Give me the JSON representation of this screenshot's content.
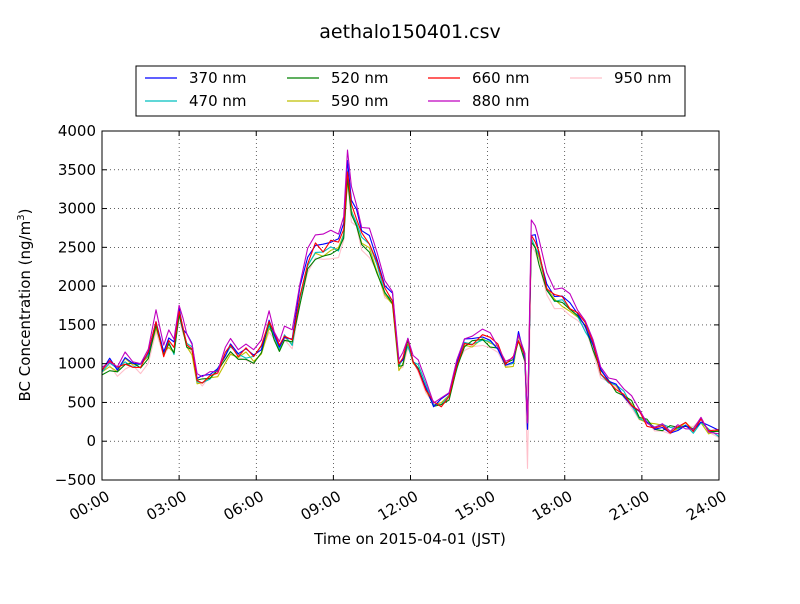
{
  "chart_data": {
    "type": "line",
    "title": "aethalo150401.csv",
    "xlabel": "Time on 2015-04-01 (JST)",
    "ylabel": "BC Concentration (ng/m",
    "ylabel_sup": "3",
    "ylabel_tail": ")",
    "xlim": [
      0,
      24
    ],
    "ylim": [
      -500,
      4000
    ],
    "xticks": [
      0,
      3,
      6,
      9,
      12,
      15,
      18,
      21,
      24
    ],
    "xtick_labels": [
      "00:00",
      "03:00",
      "06:00",
      "09:00",
      "12:00",
      "15:00",
      "18:00",
      "21:00",
      "24:00"
    ],
    "yticks": [
      -500,
      0,
      500,
      1000,
      1500,
      2000,
      2500,
      3000,
      3500,
      4000
    ],
    "ytick_labels": [
      "−500",
      "0",
      "500",
      "1000",
      "1500",
      "2000",
      "2500",
      "3000",
      "3500",
      "4000"
    ],
    "grid": true,
    "legend_position": "top-center",
    "base_profile": {
      "x": [
        0,
        0.3,
        0.6,
        0.9,
        1.2,
        1.5,
        1.8,
        2.1,
        2.4,
        2.6,
        2.8,
        3.0,
        3.15,
        3.3,
        3.5,
        3.7,
        3.9,
        4.2,
        4.5,
        4.8,
        5.0,
        5.3,
        5.6,
        5.9,
        6.2,
        6.5,
        6.7,
        6.9,
        7.1,
        7.4,
        7.7,
        8.0,
        8.3,
        8.6,
        8.9,
        9.2,
        9.4,
        9.55,
        9.7,
        9.9,
        10.1,
        10.4,
        10.7,
        11.0,
        11.3,
        11.55,
        11.7,
        11.9,
        12.1,
        12.3,
        12.6,
        12.9,
        13.2,
        13.5,
        13.8,
        14.1,
        14.4,
        14.8,
        15.1,
        15.4,
        15.7,
        16.0,
        16.2,
        16.45,
        16.55,
        16.7,
        16.85,
        17.0,
        17.3,
        17.6,
        17.9,
        18.2,
        18.5,
        18.8,
        19.1,
        19.4,
        19.7,
        20.0,
        20.3,
        20.6,
        20.9,
        21.2,
        21.5,
        21.8,
        22.1,
        22.4,
        22.7,
        23.0,
        23.3,
        23.6,
        24.0
      ],
      "y": [
        950,
        1000,
        950,
        1050,
        1000,
        980,
        1100,
        1550,
        1150,
        1300,
        1200,
        1650,
        1450,
        1300,
        1200,
        800,
        780,
        850,
        900,
        1100,
        1200,
        1100,
        1150,
        1100,
        1200,
        1550,
        1350,
        1250,
        1350,
        1300,
        1900,
        2300,
        2500,
        2500,
        2550,
        2550,
        2700,
        3500,
        3050,
        2900,
        2650,
        2550,
        2300,
        2000,
        1850,
        950,
        1050,
        1300,
        1050,
        950,
        700,
        480,
        500,
        600,
        1000,
        1250,
        1300,
        1350,
        1300,
        1200,
        1000,
        1050,
        1350,
        1100,
        200,
        2650,
        2600,
        2400,
        2000,
        1850,
        1850,
        1750,
        1650,
        1500,
        1250,
        900,
        800,
        700,
        600,
        500,
        350,
        250,
        200,
        200,
        150,
        150,
        200,
        150,
        250,
        150,
        100
      ]
    },
    "series": [
      {
        "name": "370 nm",
        "color": "#0000ff"
      },
      {
        "name": "470 nm",
        "color": "#00bfbf"
      },
      {
        "name": "520 nm",
        "color": "#008000"
      },
      {
        "name": "590 nm",
        "color": "#bfbf00"
      },
      {
        "name": "660 nm",
        "color": "#ff0000"
      },
      {
        "name": "880 nm",
        "color": "#bf00bf"
      },
      {
        "name": "950 nm",
        "color": "#ffc0cb"
      }
    ]
  }
}
